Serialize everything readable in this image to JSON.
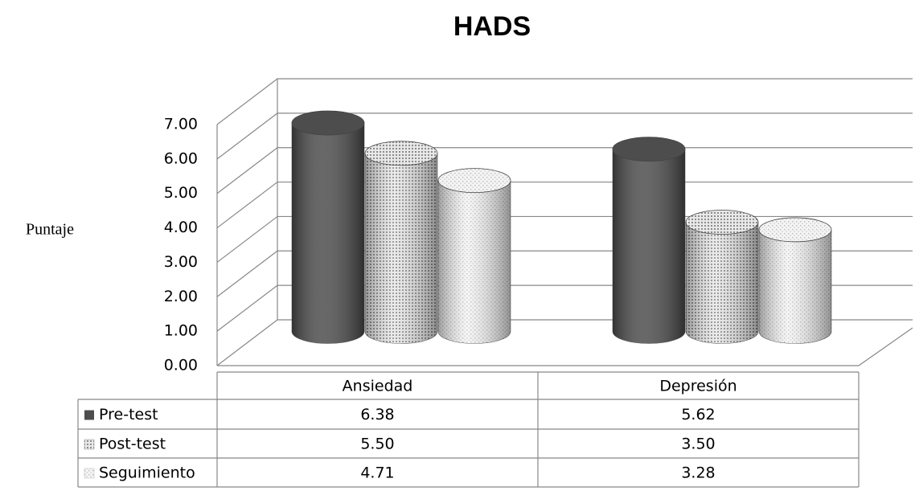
{
  "chart_data": {
    "type": "bar3d",
    "title": "HADS",
    "y_label": "Puntaje",
    "categories": [
      "Ansiedad",
      "Depresión"
    ],
    "series": [
      {
        "name": "Pre-test",
        "color": "#4d4d4d",
        "values": [
          6.38,
          5.62
        ],
        "value_labels": [
          "6.38",
          "5.62"
        ]
      },
      {
        "name": "Post-test",
        "color": "#8c8c8c",
        "values": [
          5.5,
          3.5
        ],
        "value_labels": [
          "5.50",
          "3.50"
        ]
      },
      {
        "name": "Seguimiento",
        "color": "#b8b8b8",
        "values": [
          4.71,
          3.28
        ],
        "value_labels": [
          "4.71",
          "3.28"
        ]
      }
    ],
    "ylim": [
      0,
      7
    ],
    "yticks": [
      {
        "value": 0,
        "label": "0.00"
      },
      {
        "value": 1,
        "label": "1.00"
      },
      {
        "value": 2,
        "label": "2.00"
      },
      {
        "value": 3,
        "label": "3.00"
      },
      {
        "value": 4,
        "label": "4.00"
      },
      {
        "value": 5,
        "label": "5.00"
      },
      {
        "value": 6,
        "label": "6.00"
      },
      {
        "value": 7,
        "label": "7.00"
      }
    ],
    "grid": true,
    "data_table": true
  }
}
